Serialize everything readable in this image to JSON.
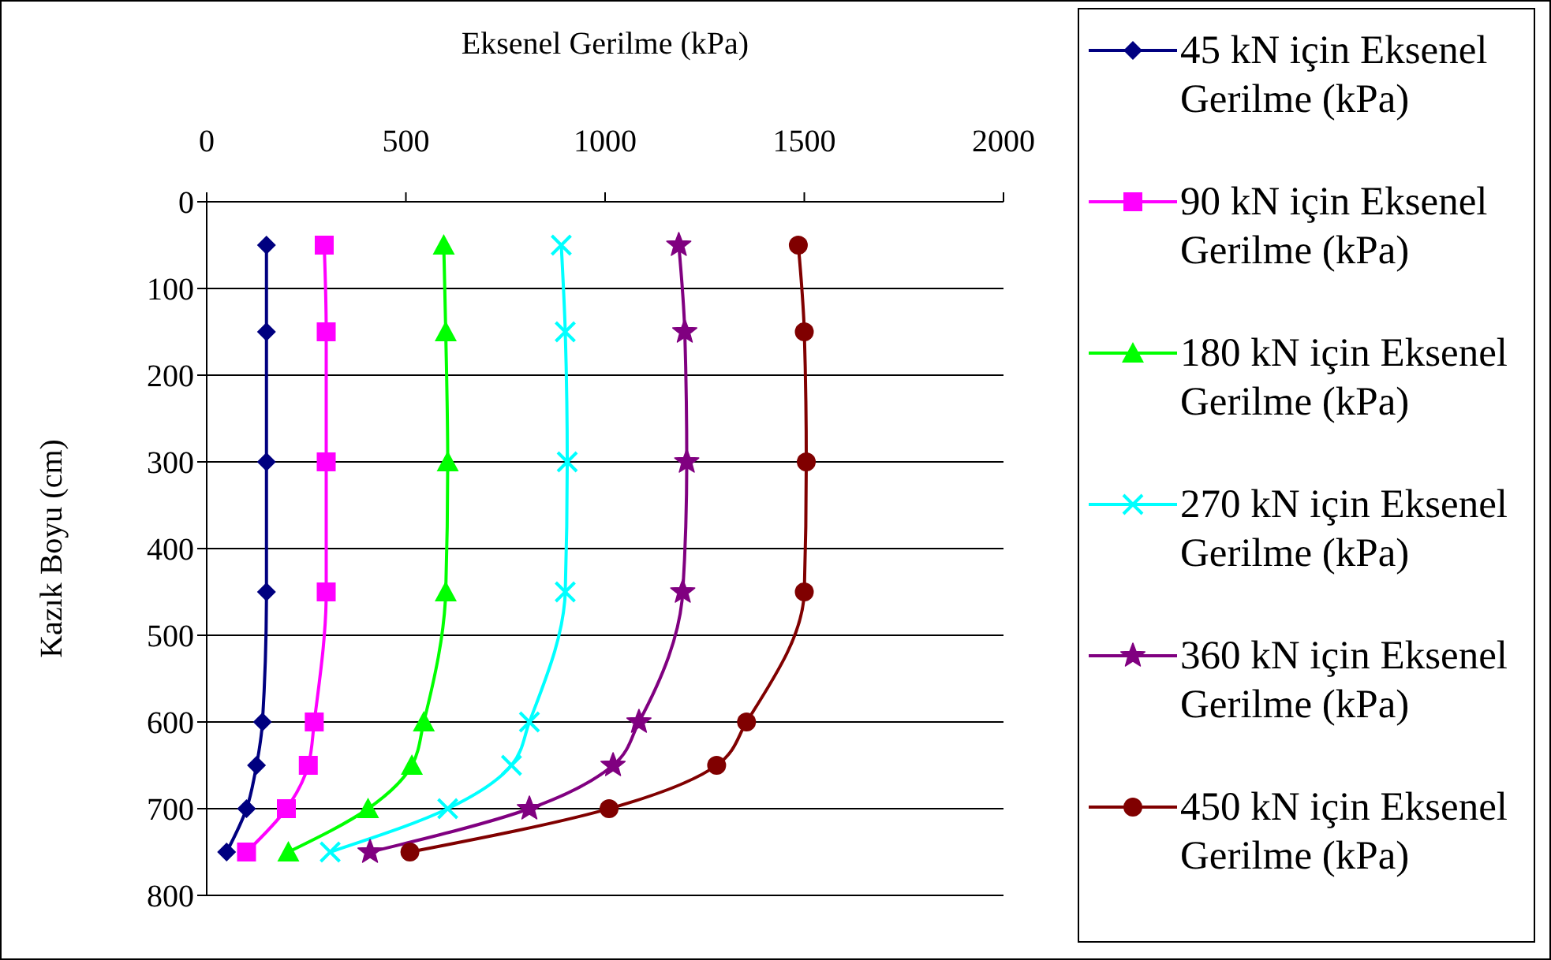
{
  "chart_data": {
    "type": "line",
    "xlabel": "Eksenel Gerilme (kPa)",
    "ylabel": "Kazık Boyu (cm)",
    "xlim": [
      0,
      2000
    ],
    "xticks": [
      0,
      500,
      1000,
      1500,
      2000
    ],
    "ylim": [
      800,
      0
    ],
    "yticks": [
      0,
      100,
      200,
      300,
      400,
      500,
      600,
      700,
      800
    ],
    "grid": "y",
    "legend": "right",
    "series": [
      {
        "name": "45 kN için Eksenel Gerilme (kPa)",
        "color": "#000080",
        "marker": "diamond",
        "x": [
          150,
          150,
          150,
          150,
          140,
          125,
          100,
          50
        ],
        "values": [
          50,
          150,
          300,
          450,
          600,
          650,
          700,
          750
        ]
      },
      {
        "name": "90 kN için Eksenel Gerilme (kPa)",
        "color": "#ff00ff",
        "marker": "square",
        "x": [
          295,
          300,
          300,
          300,
          270,
          255,
          200,
          100
        ],
        "values": [
          50,
          150,
          300,
          450,
          600,
          650,
          700,
          750
        ]
      },
      {
        "name": "180 kN için Eksenel Gerilme (kPa)",
        "color": "#00ff00",
        "marker": "triangle",
        "x": [
          595,
          600,
          605,
          600,
          545,
          515,
          405,
          205
        ],
        "values": [
          50,
          150,
          300,
          450,
          600,
          650,
          700,
          750
        ]
      },
      {
        "name": "270 kN için Eksenel Gerilme (kPa)",
        "color": "#00ffff",
        "marker": "cross",
        "x": [
          890,
          900,
          905,
          900,
          810,
          765,
          605,
          310
        ],
        "values": [
          50,
          150,
          300,
          450,
          600,
          650,
          700,
          750
        ]
      },
      {
        "name": "360 kN için Eksenel Gerilme (kPa)",
        "color": "#800080",
        "marker": "star",
        "x": [
          1185,
          1200,
          1205,
          1195,
          1085,
          1020,
          810,
          410
        ],
        "values": [
          50,
          150,
          300,
          450,
          600,
          650,
          700,
          750
        ]
      },
      {
        "name": "450 kN için Eksenel Gerilme (kPa)",
        "color": "#800000",
        "marker": "circle",
        "x": [
          1485,
          1500,
          1505,
          1500,
          1355,
          1280,
          1010,
          510
        ],
        "values": [
          50,
          150,
          300,
          450,
          600,
          650,
          700,
          750
        ]
      }
    ]
  }
}
